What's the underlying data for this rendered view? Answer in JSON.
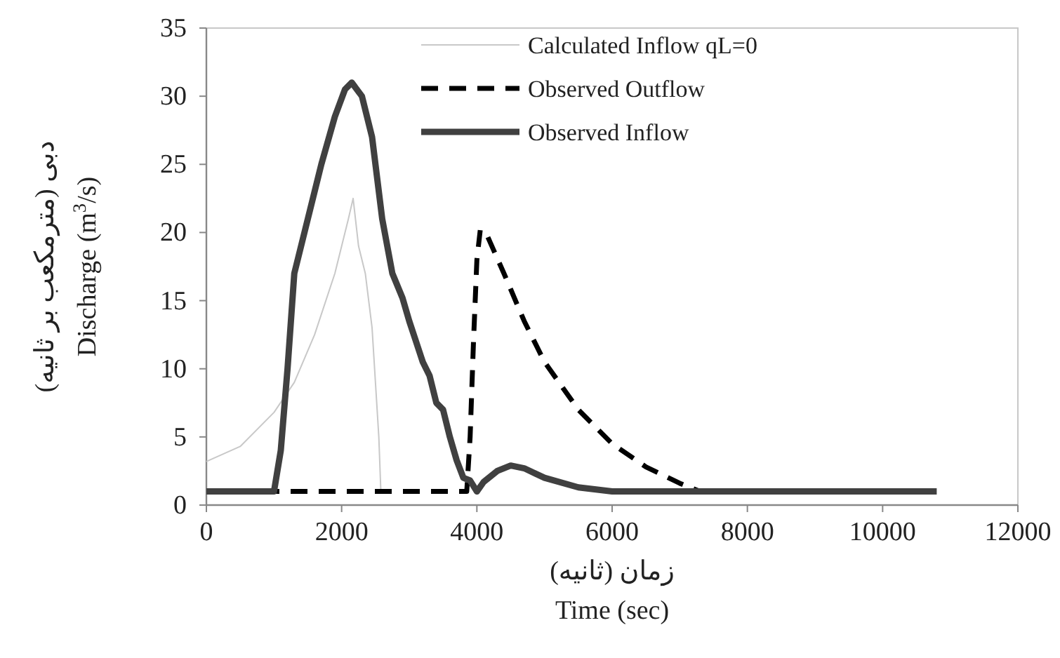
{
  "chart_data": {
    "type": "line",
    "xlabel": "زمان (ثانیه)\nTime (sec)",
    "ylabel": "دبی (مترمکعب بر ثانیه)\nDischarge (m$^{3}$/s)",
    "xlim": [
      0,
      12000
    ],
    "ylim": [
      0,
      35
    ],
    "xticks": [
      0,
      2000,
      4000,
      6000,
      8000,
      10000,
      12000
    ],
    "yticks": [
      0,
      5,
      10,
      15,
      20,
      25,
      30,
      35
    ],
    "grid": false,
    "legend": "top right",
    "marker": "none",
    "series": [
      {
        "name": "Calculated Inflow qL=0",
        "color": "#c8c8c8",
        "line_style": "solid",
        "x": [
          0,
          500,
          1000,
          1300,
          1600,
          1900,
          2100,
          2170,
          2250,
          2350,
          2450,
          2550,
          2580
        ],
        "values": [
          3.2,
          4.3,
          6.8,
          9,
          12.5,
          17,
          21,
          22.5,
          19,
          17,
          13,
          5,
          1
        ]
      },
      {
        "name": "Observed Outflow",
        "color": "#000000",
        "line_style": "dashed",
        "x": [
          0,
          3850,
          3900,
          3950,
          4000,
          4050,
          4150,
          4400,
          4700,
          5000,
          5500,
          6000,
          6500,
          7000,
          7300,
          10800
        ],
        "values": [
          1,
          1,
          5,
          12,
          18,
          20.2,
          19.8,
          17,
          13.5,
          10.5,
          7,
          4.5,
          2.8,
          1.6,
          1,
          1
        ]
      },
      {
        "name": "Observed Inflow",
        "color": "#404040",
        "line_style": "solid",
        "x": [
          0,
          1000,
          1100,
          1200,
          1300,
          1500,
          1700,
          1900,
          2050,
          2150,
          2300,
          2450,
          2600,
          2750,
          2900,
          3000,
          3100,
          3200,
          3300,
          3400,
          3500,
          3600,
          3700,
          3800,
          3900,
          4000,
          4100,
          4300,
          4500,
          4700,
          5000,
          5500,
          6000,
          10800
        ],
        "values": [
          1,
          1,
          4,
          10,
          17,
          21,
          25,
          28.5,
          30.5,
          31,
          30,
          27,
          21,
          17,
          15.2,
          13.5,
          12,
          10.5,
          9.5,
          7.5,
          7,
          5,
          3.3,
          2,
          1.8,
          1,
          1.7,
          2.5,
          2.9,
          2.7,
          2,
          1.3,
          1,
          1
        ]
      }
    ]
  }
}
